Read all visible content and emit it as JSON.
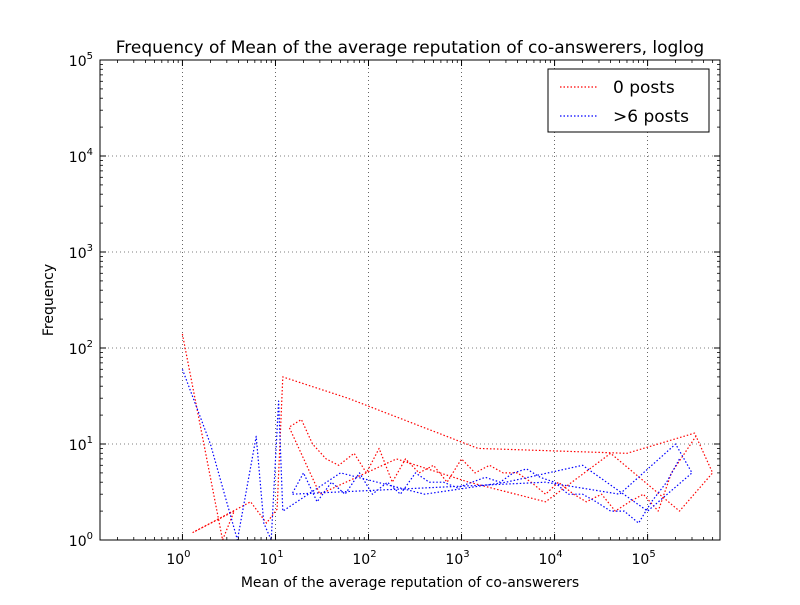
{
  "chart_data": {
    "type": "line",
    "title": "Frequency of Mean of the average reputation of co-answerers, loglog",
    "xlabel": "Mean of the average reputation of co-answerers",
    "ylabel": "Frequency",
    "xscale": "log",
    "yscale": "log",
    "xlim": [
      0.13,
      600000
    ],
    "ylim": [
      1,
      100000
    ],
    "grid": true,
    "legend_position": "top-right",
    "x_ticks": [
      {
        "base": "10",
        "exp": "0",
        "value": 1
      },
      {
        "base": "10",
        "exp": "1",
        "value": 10
      },
      {
        "base": "10",
        "exp": "2",
        "value": 100
      },
      {
        "base": "10",
        "exp": "3",
        "value": 1000
      },
      {
        "base": "10",
        "exp": "4",
        "value": 10000
      },
      {
        "base": "10",
        "exp": "5",
        "value": 100000
      }
    ],
    "y_ticks": [
      {
        "base": "10",
        "exp": "0",
        "value": 1
      },
      {
        "base": "10",
        "exp": "1",
        "value": 10
      },
      {
        "base": "10",
        "exp": "2",
        "value": 100
      },
      {
        "base": "10",
        "exp": "3",
        "value": 1000
      },
      {
        "base": "10",
        "exp": "4",
        "value": 10000
      },
      {
        "base": "10",
        "exp": "5",
        "value": 100000
      }
    ],
    "series": [
      {
        "name": "0 posts",
        "color": "#ff0000",
        "style": "dotted",
        "x": [
          1.0,
          2.7,
          3.6,
          1.3,
          5.4,
          8.0,
          10.4,
          12,
          60,
          1500,
          60000,
          320000,
          500000,
          220000,
          40000,
          8000,
          1200,
          200,
          30,
          14,
          19,
          25,
          35,
          48,
          70,
          95,
          130,
          180,
          250,
          350,
          500,
          700,
          1000,
          1400,
          2000,
          2800,
          4000,
          5600,
          8000,
          11000,
          16000,
          22000,
          32000,
          45000,
          64000,
          90000,
          130000,
          180000,
          250000,
          330000
        ],
        "y": [
          140,
          1,
          2,
          1.2,
          2.5,
          1.5,
          2.1,
          50,
          30,
          9,
          8,
          13,
          5,
          2,
          8,
          2.5,
          4,
          7,
          3,
          15,
          18,
          10,
          7,
          6,
          8,
          5,
          9,
          4,
          7,
          5,
          6,
          4,
          7,
          5,
          6,
          5,
          5,
          4,
          3,
          4,
          3,
          2.5,
          3,
          2,
          2.5,
          3,
          2,
          5,
          8,
          12
        ]
      },
      {
        "name": ">6 posts",
        "color": "#0000ff",
        "style": "dotted",
        "x": [
          1.0,
          2.0,
          3.9,
          6.2,
          7.5,
          9.0,
          10.8,
          12,
          50,
          400,
          3000,
          20000,
          100000,
          300000,
          200000,
          50000,
          8000,
          15,
          20,
          28,
          40,
          56,
          80,
          110,
          160,
          220,
          320,
          450,
          640,
          900,
          1300,
          1800,
          2600,
          3600,
          5000,
          7000,
          10000,
          14000,
          20000,
          28000,
          40000,
          56000,
          80000,
          110000,
          160000,
          220000
        ],
        "y": [
          60,
          10,
          1,
          12,
          1.5,
          1,
          28,
          2,
          5,
          3,
          4,
          6,
          2,
          5,
          10,
          3,
          4,
          3,
          5,
          2.5,
          4,
          3,
          5,
          3,
          4,
          3,
          5,
          4,
          4,
          3.5,
          4,
          4.5,
          4,
          5,
          5.5,
          4.5,
          4,
          3,
          3,
          2.5,
          2,
          2,
          1.5,
          2.5,
          4,
          7
        ]
      }
    ]
  }
}
